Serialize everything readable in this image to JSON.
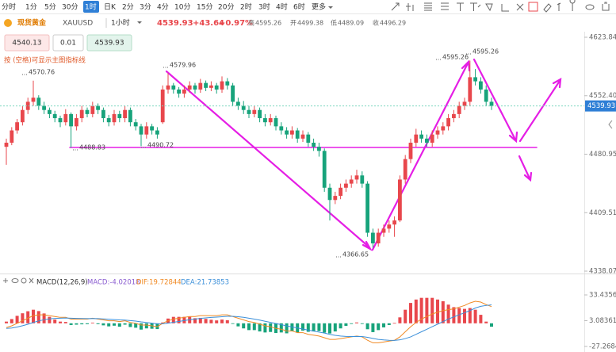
{
  "toolbar": {
    "periods": [
      "分时",
      "1分",
      "5分",
      "30分",
      "1时",
      "日K",
      "2分",
      "3分",
      "4分",
      "10分",
      "15分",
      "20分",
      "2时",
      "3时",
      "4时",
      "6时",
      "更多"
    ],
    "active_period": 4
  },
  "header": {
    "name": "现货黄金",
    "symbol": "XAUUSD",
    "interval": "1小时",
    "price": "4539.93",
    "change": "+43.64",
    "change_pct": "+0.97%",
    "stats": [
      {
        "label": "高",
        "value": "4595.26"
      },
      {
        "label": "开",
        "value": "4499.38"
      },
      {
        "label": "低",
        "value": "4489.09"
      },
      {
        "label": "收",
        "value": "4496.29"
      }
    ]
  },
  "order": {
    "sell": "4540.13",
    "qty": "0.01",
    "buy": "4539.93"
  },
  "hint": "按 (空格)可显示主图指标线",
  "chart_data": [
    {
      "type": "candlestick",
      "up_color": "#e8474c",
      "down_color": "#17a37b",
      "ylim": [
        4338.07,
        4623.84
      ],
      "yticks": [
        4338.07,
        4409.51,
        4480.95,
        {
          "value": 4552.4,
          "label": "4552.40"
        },
        4623.84
      ],
      "last": 4539.93,
      "last_color": "#2f7fd6",
      "annotations": [
        "4570.76",
        "4488.83",
        "4490.72",
        "4579.96",
        "4366.65",
        "4595.26",
        "4595.26"
      ],
      "ohlc": [
        [
          4490,
          4500,
          4468,
          4495
        ],
        [
          4495,
          4514,
          4492,
          4510
        ],
        [
          4510,
          4524,
          4506,
          4520
        ],
        [
          4520,
          4540,
          4516,
          4535
        ],
        [
          4535,
          4550,
          4530,
          4545
        ],
        [
          4545,
          4570.76,
          4540,
          4550
        ],
        [
          4550,
          4553,
          4535,
          4540
        ],
        [
          4540,
          4545,
          4530,
          4535
        ],
        [
          4535,
          4538,
          4525,
          4530
        ],
        [
          4530,
          4534,
          4520,
          4525
        ],
        [
          4525,
          4528,
          4514,
          4520
        ],
        [
          4520,
          4536,
          4516,
          4530
        ],
        [
          4530,
          4532,
          4488.83,
          4515
        ],
        [
          4515,
          4530,
          4510,
          4525
        ],
        [
          4525,
          4540,
          4520,
          4535
        ],
        [
          4535,
          4538,
          4526,
          4530
        ],
        [
          4530,
          4545,
          4526,
          4540
        ],
        [
          4540,
          4543,
          4530,
          4535
        ],
        [
          4535,
          4538,
          4520,
          4525
        ],
        [
          4525,
          4529,
          4515,
          4520
        ],
        [
          4520,
          4535,
          4516,
          4530
        ],
        [
          4530,
          4534,
          4520,
          4525
        ],
        [
          4525,
          4540,
          4520,
          4535
        ],
        [
          4535,
          4538,
          4515,
          4520
        ],
        [
          4520,
          4524,
          4510,
          4515
        ],
        [
          4515,
          4518,
          4490.72,
          4505
        ],
        [
          4505,
          4520,
          4500,
          4515
        ],
        [
          4515,
          4518,
          4505,
          4510
        ],
        [
          4510,
          4514,
          4500,
          4505
        ],
        [
          4520,
          4565,
          4518,
          4560
        ],
        [
          4560,
          4579.96,
          4555,
          4565
        ],
        [
          4565,
          4568,
          4555,
          4560
        ],
        [
          4560,
          4563,
          4550,
          4555
        ],
        [
          4555,
          4565,
          4550,
          4560
        ],
        [
          4560,
          4570,
          4556,
          4565
        ],
        [
          4565,
          4568,
          4555,
          4560
        ],
        [
          4560,
          4573,
          4556,
          4568
        ],
        [
          4568,
          4571,
          4558,
          4562
        ],
        [
          4562,
          4570,
          4558,
          4565
        ],
        [
          4565,
          4568,
          4555,
          4560
        ],
        [
          4560,
          4576,
          4556,
          4570
        ],
        [
          4570,
          4574,
          4560,
          4565
        ],
        [
          4565,
          4568,
          4540,
          4545
        ],
        [
          4545,
          4550,
          4535,
          4540
        ],
        [
          4540,
          4546,
          4530,
          4535
        ],
        [
          4535,
          4540,
          4525,
          4530
        ],
        [
          4530,
          4540,
          4526,
          4535
        ],
        [
          4535,
          4538,
          4520,
          4525
        ],
        [
          4525,
          4530,
          4515,
          4520
        ],
        [
          4520,
          4530,
          4516,
          4525
        ],
        [
          4525,
          4528,
          4510,
          4515
        ],
        [
          4515,
          4520,
          4505,
          4510
        ],
        [
          4510,
          4514,
          4500,
          4505
        ],
        [
          4505,
          4515,
          4500,
          4510
        ],
        [
          4510,
          4513,
          4495,
          4500
        ],
        [
          4500,
          4510,
          4496,
          4505
        ],
        [
          4505,
          4508,
          4490,
          4495
        ],
        [
          4495,
          4500,
          4485,
          4490
        ],
        [
          4490,
          4495,
          4478,
          4485
        ],
        [
          4485,
          4488,
          4435,
          4440
        ],
        [
          4440,
          4445,
          4400,
          4425
        ],
        [
          4425,
          4435,
          4420,
          4430
        ],
        [
          4430,
          4445,
          4426,
          4440
        ],
        [
          4440,
          4450,
          4435,
          4445
        ],
        [
          4445,
          4455,
          4440,
          4450
        ],
        [
          4450,
          4462,
          4445,
          4455
        ],
        [
          4455,
          4460,
          4440,
          4445
        ],
        [
          4445,
          4448,
          4380,
          4385
        ],
        [
          4385,
          4390,
          4366.65,
          4372
        ],
        [
          4372,
          4390,
          4368,
          4385
        ],
        [
          4385,
          4395,
          4380,
          4390
        ],
        [
          4390,
          4400,
          4385,
          4395
        ],
        [
          4395,
          4405,
          4380,
          4400
        ],
        [
          4400,
          4455,
          4398,
          4450
        ],
        [
          4450,
          4480,
          4445,
          4475
        ],
        [
          4475,
          4500,
          4470,
          4495
        ],
        [
          4495,
          4512,
          4490,
          4505
        ],
        [
          4505,
          4510,
          4495,
          4500
        ],
        [
          4500,
          4505,
          4490,
          4495
        ],
        [
          4495,
          4510,
          4490,
          4505
        ],
        [
          4505,
          4515,
          4500,
          4510
        ],
        [
          4510,
          4520,
          4505,
          4515
        ],
        [
          4515,
          4530,
          4510,
          4525
        ],
        [
          4525,
          4535,
          4520,
          4530
        ],
        [
          4530,
          4545,
          4525,
          4540
        ],
        [
          4540,
          4550,
          4535,
          4545
        ],
        [
          4545,
          4595.26,
          4540,
          4575
        ],
        [
          4575,
          4585,
          4565,
          4570
        ],
        [
          4570,
          4575,
          4555,
          4560
        ],
        [
          4560,
          4565,
          4540,
          4545
        ],
        [
          4545,
          4550,
          4535,
          4539.93
        ]
      ]
    },
    {
      "type": "macd",
      "title": "MACD(12,26,9)",
      "legend": [
        "MACD:-4.02018",
        "DIF:19.72844",
        "DEA:21.73853"
      ],
      "legend_colors": [
        "#8a5cd0",
        "#f08a24",
        "#3b8fd9"
      ],
      "ylim": [
        -27.26845,
        33.43566
      ],
      "yticks": [
        -27.26845,
        3.08361,
        33.43566
      ],
      "up_color": "#e8474c",
      "down_color": "#17a37b",
      "series": [
        {
          "color": "#e8474c",
          "values": [
            2,
            5,
            8.8,
            11.8,
            14.2,
            16,
            14.4,
            11.6,
            7.6,
            4.4,
            2,
            1.6,
            -2,
            -1.6,
            -1.2,
            -1,
            0.8,
            -1,
            -2.4,
            -3.6,
            -2.8,
            -4,
            -1.6,
            -4.4,
            -5.2,
            -7.4,
            -6,
            -6.4,
            -6.8,
            1,
            5.6,
            7.6,
            7.6,
            7.6,
            7.6,
            6,
            6.4,
            5.2,
            4.2,
            3.4,
            4.4,
            3.6,
            -0.4,
            -3.6,
            -6,
            -8,
            -8,
            -9.6,
            -10.8,
            -10.2,
            -11.4,
            -10.8,
            -11.8,
            -9.4,
            -10.8,
            -8.6,
            -10,
            -9.6,
            -9.2,
            -11,
            -12,
            -9.6,
            -6,
            -3,
            -0.8,
            1,
            -0.8,
            -7,
            -10.4,
            -8,
            -4.8,
            -2,
            0.4,
            7,
            16,
            24,
            28,
            30,
            30,
            30,
            28,
            26,
            22,
            19,
            18,
            17,
            18,
            16,
            10,
            2,
            -4.02
          ]
        },
        {
          "color": "#f08a24",
          "values": [
            -5,
            -3,
            0,
            3,
            6,
            9,
            10,
            10,
            9,
            8,
            7,
            7,
            5,
            5,
            5,
            5,
            6,
            5,
            4,
            3,
            3,
            2,
            3,
            1,
            0,
            -2,
            -2,
            -3,
            -4,
            0,
            3,
            5,
            6,
            7,
            8,
            8,
            9,
            9,
            9,
            9,
            10,
            10,
            8,
            6,
            4,
            2,
            1,
            -1,
            -3,
            -4,
            -6,
            -7,
            -9,
            -9,
            -11,
            -11,
            -13,
            -14,
            -15,
            -17,
            -19,
            -19,
            -18,
            -17,
            -16,
            -15,
            -16,
            -20,
            -23,
            -23,
            -22,
            -21,
            -20,
            -16,
            -10,
            -4,
            1,
            5,
            8,
            11,
            13,
            15,
            16,
            17,
            19,
            21,
            24,
            26,
            25,
            22,
            19.73
          ]
        },
        {
          "color": "#3b8fd9",
          "values": [
            -6,
            -5.5,
            -4.4,
            -2.9,
            -1.1,
            1,
            2.8,
            4.2,
            5.2,
            5.8,
            6,
            6.2,
            6,
            5.8,
            5.6,
            5.5,
            5.6,
            5.5,
            5.2,
            4.8,
            4.4,
            4,
            3.8,
            3.2,
            2.6,
            1.7,
            1,
            0.2,
            -0.6,
            -0.5,
            0.2,
            1.2,
            2.2,
            3.2,
            4.2,
            5,
            5.8,
            6.4,
            6.9,
            7.3,
            7.8,
            8.2,
            8.2,
            7.8,
            7,
            6,
            5,
            3.8,
            2.4,
            1.1,
            -0.3,
            -1.6,
            -3.1,
            -4.3,
            -5.6,
            -6.7,
            -8,
            -9.2,
            -10.4,
            -11.5,
            -13,
            -14.2,
            -15,
            -15.5,
            -15.6,
            -15.5,
            -15.6,
            -16.5,
            -17.8,
            -19,
            -19.6,
            -20,
            -20.2,
            -19.5,
            -18,
            -16,
            -13,
            -10,
            -7,
            -4,
            -1,
            2,
            5,
            7.5,
            10,
            12.5,
            15,
            18,
            20,
            21,
            21.74
          ]
        }
      ]
    }
  ]
}
